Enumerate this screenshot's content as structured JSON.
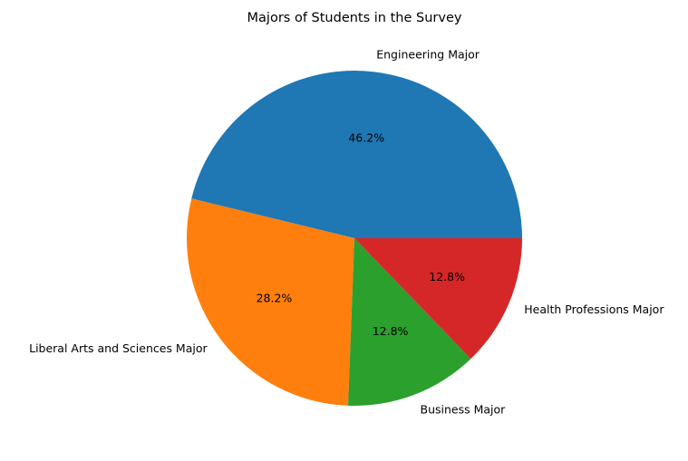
{
  "chart_data": {
    "type": "pie",
    "title": "Majors of Students in the Survey",
    "slices": [
      {
        "label": "Engineering Major",
        "value": 46.2,
        "display": "46.2%",
        "color": "#1f77b4"
      },
      {
        "label": "Liberal Arts and Sciences Major",
        "value": 28.2,
        "display": "28.2%",
        "color": "#ff7f0e"
      },
      {
        "label": "Business Major",
        "value": 12.8,
        "display": "12.8%",
        "color": "#2ca02c"
      },
      {
        "label": "Health Professions Major",
        "value": 12.8,
        "display": "12.8%",
        "color": "#d62728"
      }
    ],
    "start_angle": 0,
    "direction": "counterclockwise",
    "legend": "none"
  }
}
